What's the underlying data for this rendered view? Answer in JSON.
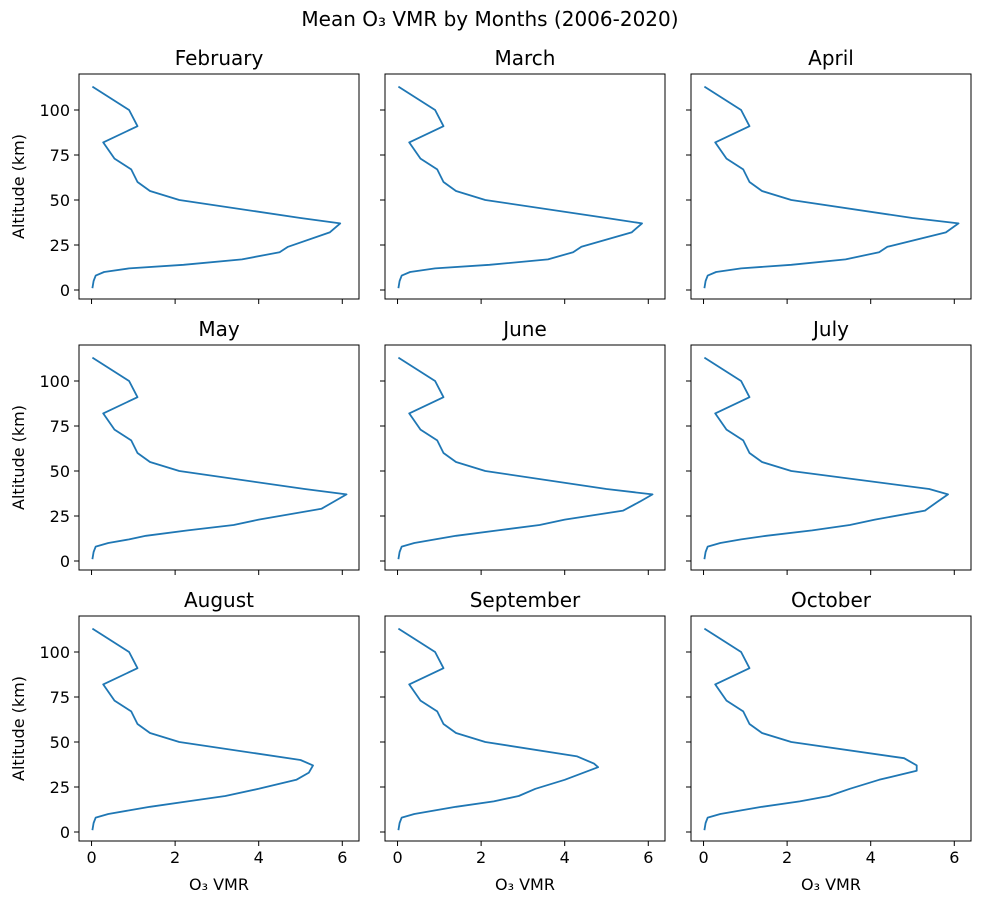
{
  "figure": {
    "title": "Mean O₃ VMR by Months (2006-2020)",
    "xlabel": "O₃ VMR",
    "ylabel": "Altitude (km)",
    "line_color": "#1f77b4"
  },
  "chart_data": [
    {
      "type": "line",
      "title": "February",
      "xlabel": "",
      "ylabel": "Altitude (km)",
      "xlim": [
        -0.3,
        6.4
      ],
      "ylim": [
        -5,
        120
      ],
      "xticks": [],
      "yticks": [
        "0",
        "25",
        "50",
        "75",
        "100"
      ],
      "x": [
        0.02,
        0.05,
        0.1,
        0.3,
        0.9,
        2.2,
        3.6,
        4.5,
        4.7,
        5.7,
        5.95,
        5.0,
        2.1,
        1.4,
        1.1,
        0.95,
        0.55,
        0.28,
        1.1,
        0.9,
        0.02
      ],
      "y": [
        1,
        5,
        8,
        10,
        12,
        14,
        17,
        21,
        24,
        32,
        37,
        40,
        50,
        55,
        60,
        67,
        73,
        82,
        91,
        100,
        113
      ]
    },
    {
      "type": "line",
      "title": "March",
      "xlabel": "",
      "ylabel": "",
      "xlim": [
        -0.3,
        6.4
      ],
      "ylim": [
        -5,
        120
      ],
      "xticks": [],
      "yticks": [],
      "x": [
        0.02,
        0.05,
        0.1,
        0.3,
        0.9,
        2.2,
        3.6,
        4.2,
        4.4,
        5.6,
        5.85,
        5.0,
        2.1,
        1.4,
        1.1,
        0.95,
        0.55,
        0.28,
        1.1,
        0.9,
        0.02
      ],
      "y": [
        1,
        5,
        8,
        10,
        12,
        14,
        17,
        21,
        24,
        32,
        37,
        40,
        50,
        55,
        60,
        67,
        73,
        82,
        91,
        100,
        113
      ]
    },
    {
      "type": "line",
      "title": "April",
      "xlabel": "",
      "ylabel": "",
      "xlim": [
        -0.3,
        6.4
      ],
      "ylim": [
        -5,
        120
      ],
      "xticks": [],
      "yticks": [],
      "x": [
        0.02,
        0.05,
        0.1,
        0.3,
        0.9,
        2.1,
        3.4,
        4.2,
        4.4,
        5.8,
        6.1,
        5.0,
        2.1,
        1.4,
        1.1,
        0.95,
        0.55,
        0.28,
        1.1,
        0.9,
        0.02
      ],
      "y": [
        1,
        5,
        8,
        10,
        12,
        14,
        17,
        21,
        24,
        32,
        37,
        40,
        50,
        55,
        60,
        67,
        73,
        82,
        91,
        100,
        113
      ]
    },
    {
      "type": "line",
      "title": "May",
      "xlabel": "",
      "ylabel": "Altitude (km)",
      "xlim": [
        -0.3,
        6.4
      ],
      "ylim": [
        -5,
        120
      ],
      "xticks": [],
      "yticks": [
        "0",
        "25",
        "50",
        "75",
        "100"
      ],
      "x": [
        0.02,
        0.05,
        0.1,
        0.4,
        0.9,
        1.3,
        2.3,
        3.4,
        4.0,
        5.5,
        5.8,
        6.1,
        5.1,
        2.1,
        1.4,
        1.1,
        0.95,
        0.55,
        0.28,
        1.1,
        0.9,
        0.02
      ],
      "y": [
        1,
        5,
        8,
        10,
        12,
        14,
        17,
        20,
        23,
        29,
        33,
        37,
        40,
        50,
        55,
        60,
        67,
        73,
        82,
        91,
        100,
        113
      ]
    },
    {
      "type": "line",
      "title": "June",
      "xlabel": "",
      "ylabel": "",
      "xlim": [
        -0.3,
        6.4
      ],
      "ylim": [
        -5,
        120
      ],
      "xticks": [],
      "yticks": [],
      "x": [
        0.02,
        0.05,
        0.1,
        0.4,
        0.9,
        1.4,
        2.4,
        3.4,
        4.0,
        5.4,
        5.8,
        6.1,
        5.0,
        2.1,
        1.4,
        1.1,
        0.95,
        0.55,
        0.28,
        1.1,
        0.9,
        0.02
      ],
      "y": [
        1,
        5,
        8,
        10,
        12,
        14,
        17,
        20,
        23,
        28,
        33,
        37,
        40,
        50,
        55,
        60,
        67,
        73,
        82,
        91,
        100,
        113
      ]
    },
    {
      "type": "line",
      "title": "July",
      "xlabel": "",
      "ylabel": "",
      "xlim": [
        -0.3,
        6.4
      ],
      "ylim": [
        -5,
        120
      ],
      "xticks": [],
      "yticks": [],
      "x": [
        0.02,
        0.05,
        0.1,
        0.4,
        0.9,
        1.5,
        2.6,
        3.5,
        4.1,
        5.3,
        5.6,
        5.85,
        5.4,
        2.1,
        1.4,
        1.1,
        0.95,
        0.55,
        0.28,
        1.1,
        0.9,
        0.02
      ],
      "y": [
        1,
        5,
        8,
        10,
        12,
        14,
        17,
        20,
        23,
        28,
        33,
        37,
        40,
        50,
        55,
        60,
        67,
        73,
        82,
        91,
        100,
        113
      ]
    },
    {
      "type": "line",
      "title": "August",
      "xlabel": "O₃ VMR",
      "ylabel": "Altitude (km)",
      "xlim": [
        -0.3,
        6.4
      ],
      "ylim": [
        -5,
        120
      ],
      "xticks": [
        "0",
        "2",
        "4",
        "6"
      ],
      "yticks": [
        "0",
        "25",
        "50",
        "75",
        "100"
      ],
      "x": [
        0.02,
        0.05,
        0.1,
        0.4,
        0.9,
        1.4,
        2.3,
        3.2,
        4.0,
        4.9,
        5.2,
        5.3,
        5.0,
        2.1,
        1.4,
        1.1,
        0.95,
        0.55,
        0.28,
        1.1,
        0.9,
        0.02
      ],
      "y": [
        1,
        5,
        8,
        10,
        12,
        14,
        17,
        20,
        24,
        29,
        33,
        37,
        40,
        50,
        55,
        60,
        67,
        73,
        82,
        91,
        100,
        113
      ]
    },
    {
      "type": "line",
      "title": "September",
      "xlabel": "O₃ VMR",
      "ylabel": "",
      "xlim": [
        -0.3,
        6.4
      ],
      "ylim": [
        -5,
        120
      ],
      "xticks": [
        "0",
        "2",
        "4",
        "6"
      ],
      "yticks": [],
      "x": [
        0.02,
        0.05,
        0.1,
        0.4,
        0.9,
        1.4,
        2.3,
        2.9,
        3.3,
        4.0,
        4.8,
        4.7,
        4.3,
        2.1,
        1.4,
        1.1,
        0.95,
        0.55,
        0.28,
        1.1,
        0.9,
        0.02
      ],
      "y": [
        1,
        5,
        8,
        10,
        12,
        14,
        17,
        20,
        24,
        29,
        36,
        38,
        42,
        50,
        55,
        60,
        67,
        73,
        82,
        91,
        100,
        113
      ]
    },
    {
      "type": "line",
      "title": "October",
      "xlabel": "O₃ VMR",
      "ylabel": "",
      "xlim": [
        -0.3,
        6.4
      ],
      "ylim": [
        -5,
        120
      ],
      "xticks": [
        "0",
        "2",
        "4",
        "6"
      ],
      "yticks": [],
      "x": [
        0.02,
        0.05,
        0.1,
        0.4,
        0.9,
        1.4,
        2.3,
        3.0,
        3.5,
        4.2,
        5.1,
        5.1,
        4.8,
        2.1,
        1.4,
        1.1,
        0.95,
        0.55,
        0.28,
        1.1,
        0.9,
        0.02
      ],
      "y": [
        1,
        5,
        8,
        10,
        12,
        14,
        17,
        20,
        24,
        29,
        34,
        37,
        41,
        50,
        55,
        60,
        67,
        73,
        82,
        91,
        100,
        113
      ]
    }
  ]
}
